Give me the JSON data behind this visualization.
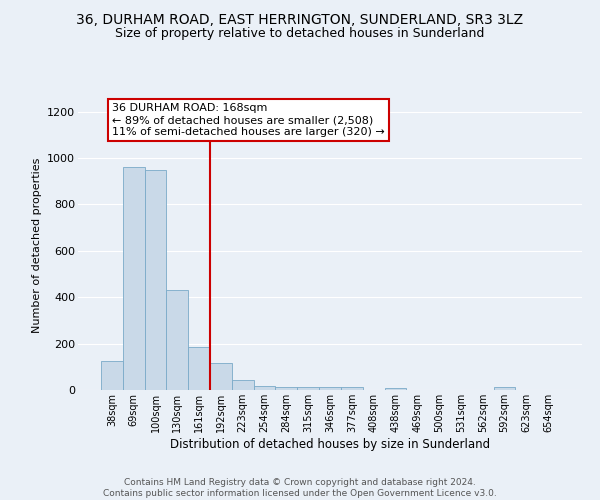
{
  "title": "36, DURHAM ROAD, EAST HERRINGTON, SUNDERLAND, SR3 3LZ",
  "subtitle": "Size of property relative to detached houses in Sunderland",
  "xlabel": "Distribution of detached houses by size in Sunderland",
  "ylabel": "Number of detached properties",
  "categories": [
    "38sqm",
    "69sqm",
    "100sqm",
    "130sqm",
    "161sqm",
    "192sqm",
    "223sqm",
    "254sqm",
    "284sqm",
    "315sqm",
    "346sqm",
    "377sqm",
    "408sqm",
    "438sqm",
    "469sqm",
    "500sqm",
    "531sqm",
    "562sqm",
    "592sqm",
    "623sqm",
    "654sqm"
  ],
  "values": [
    125,
    960,
    950,
    430,
    185,
    115,
    45,
    18,
    15,
    15,
    15,
    12,
    0,
    10,
    0,
    0,
    0,
    0,
    12,
    0,
    0
  ],
  "bar_color": "#c9d9e8",
  "bar_edge_color": "#7aaac8",
  "vline_x": 4.5,
  "vline_color": "#cc0000",
  "annotation_text": "36 DURHAM ROAD: 168sqm\n← 89% of detached houses are smaller (2,508)\n11% of semi-detached houses are larger (320) →",
  "annotation_box_color": "#ffffff",
  "annotation_box_edge": "#cc0000",
  "ylim": [
    0,
    1250
  ],
  "yticks": [
    0,
    200,
    400,
    600,
    800,
    1000,
    1200
  ],
  "footer_text": "Contains HM Land Registry data © Crown copyright and database right 2024.\nContains public sector information licensed under the Open Government Licence v3.0.",
  "bg_color": "#eaf0f7",
  "plot_bg_color": "#eaf0f7",
  "title_fontsize": 10,
  "subtitle_fontsize": 9,
  "ann_fontsize": 8
}
